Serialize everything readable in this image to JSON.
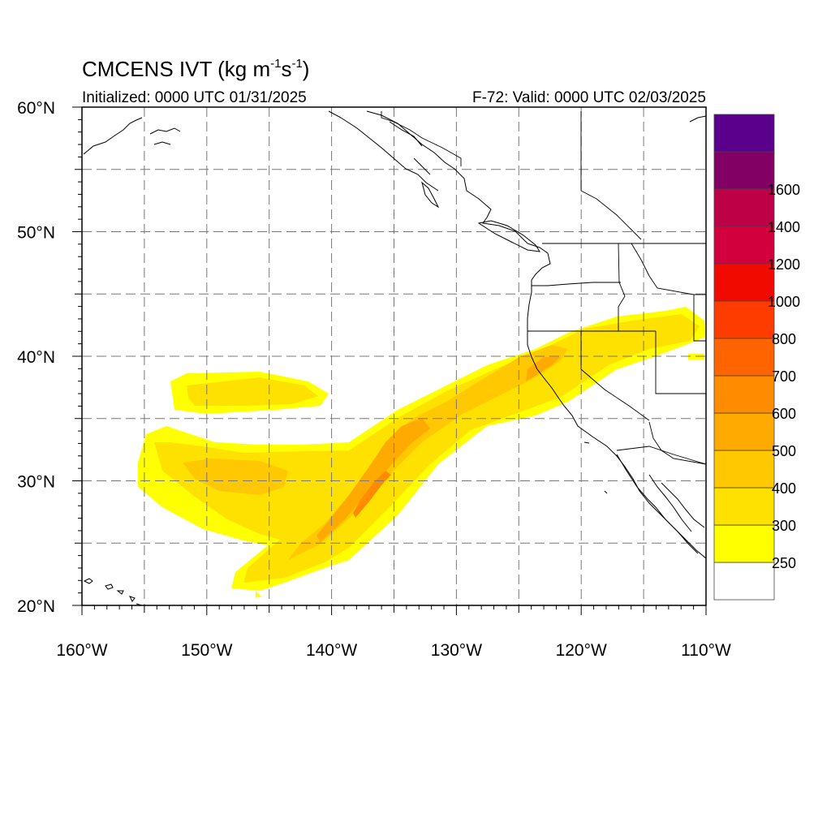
{
  "title": {
    "prefix": "CMCENS IVT (kg m",
    "exp1": "-1",
    "mid": "s",
    "exp2": "-1",
    "suffix": ")",
    "initialized": "Initialized: 0000 UTC 01/31/2025",
    "valid": "F-72: Valid: 0000 UTC 02/03/2025"
  },
  "map": {
    "lon_range": [
      -160,
      -110
    ],
    "lat_range": [
      20,
      60
    ],
    "lon_labels": [
      {
        "lon": -160,
        "label": "160°W"
      },
      {
        "lon": -150,
        "label": "150°W"
      },
      {
        "lon": -140,
        "label": "140°W"
      },
      {
        "lon": -130,
        "label": "130°W"
      },
      {
        "lon": -120,
        "label": "120°W"
      },
      {
        "lon": -110,
        "label": "110°W"
      }
    ],
    "lat_labels": [
      {
        "lat": 20,
        "label": "20°N"
      },
      {
        "lat": 30,
        "label": "30°N"
      },
      {
        "lat": 40,
        "label": "40°N"
      },
      {
        "lat": 50,
        "label": "50°N"
      },
      {
        "lat": 60,
        "label": "60°N"
      }
    ],
    "grid_lons": [
      -155,
      -150,
      -145,
      -140,
      -135,
      -130,
      -125,
      -120,
      -115
    ],
    "grid_lats": [
      25,
      30,
      35,
      40,
      45,
      50,
      55
    ]
  },
  "colorbar": {
    "bins": [
      {
        "color": "#ffffff"
      },
      {
        "color": "#ffff00",
        "label": "250"
      },
      {
        "color": "#ffe100",
        "label": "300"
      },
      {
        "color": "#ffc800",
        "label": "400"
      },
      {
        "color": "#ffaa00",
        "label": "500"
      },
      {
        "color": "#ff8c00",
        "label": "600"
      },
      {
        "color": "#ff6400",
        "label": "700"
      },
      {
        "color": "#ff3c00",
        "label": "800"
      },
      {
        "color": "#f00a00",
        "label": "1000"
      },
      {
        "color": "#d2003c",
        "label": "1200"
      },
      {
        "color": "#be0046",
        "label": "1400"
      },
      {
        "color": "#820064",
        "label": "1600"
      },
      {
        "color": "#5a008c"
      }
    ]
  }
}
